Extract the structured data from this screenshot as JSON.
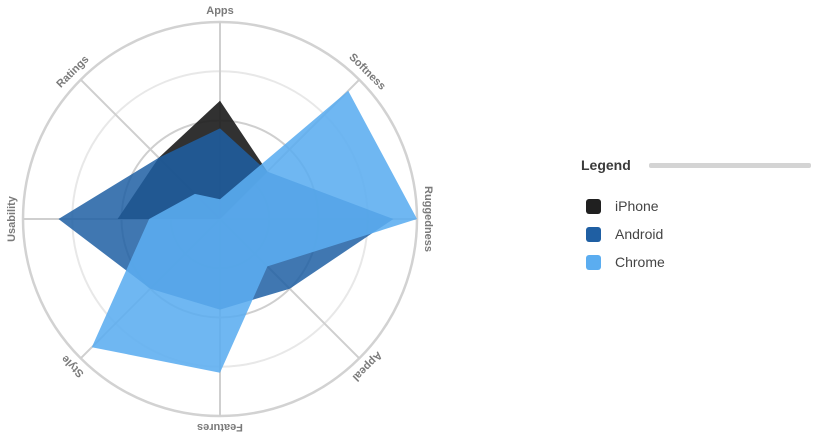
{
  "chart_data": {
    "type": "radar",
    "axes": [
      "Apps",
      "Softness",
      "Ruggedness",
      "Appeal",
      "Features",
      "Style",
      "Usability",
      "Ratings"
    ],
    "range": [
      0,
      5
    ],
    "rings": 4,
    "grid": true,
    "series": [
      {
        "name": "iPhone",
        "color": "#202020",
        "values": [
          3.0,
          1.7,
          0.0,
          0.0,
          0.0,
          0.0,
          2.6,
          2.2
        ]
      },
      {
        "name": "Android",
        "color": "#1f5fa3",
        "values": [
          2.3,
          1.7,
          4.4,
          2.5,
          2.3,
          2.5,
          4.1,
          2.2
        ]
      },
      {
        "name": "Chrome",
        "color": "#5badf0",
        "values": [
          0.5,
          4.6,
          5.0,
          1.7,
          3.9,
          4.6,
          1.8,
          0.9
        ]
      }
    ],
    "legend_position": "right"
  },
  "legend": {
    "title": "Legend"
  }
}
